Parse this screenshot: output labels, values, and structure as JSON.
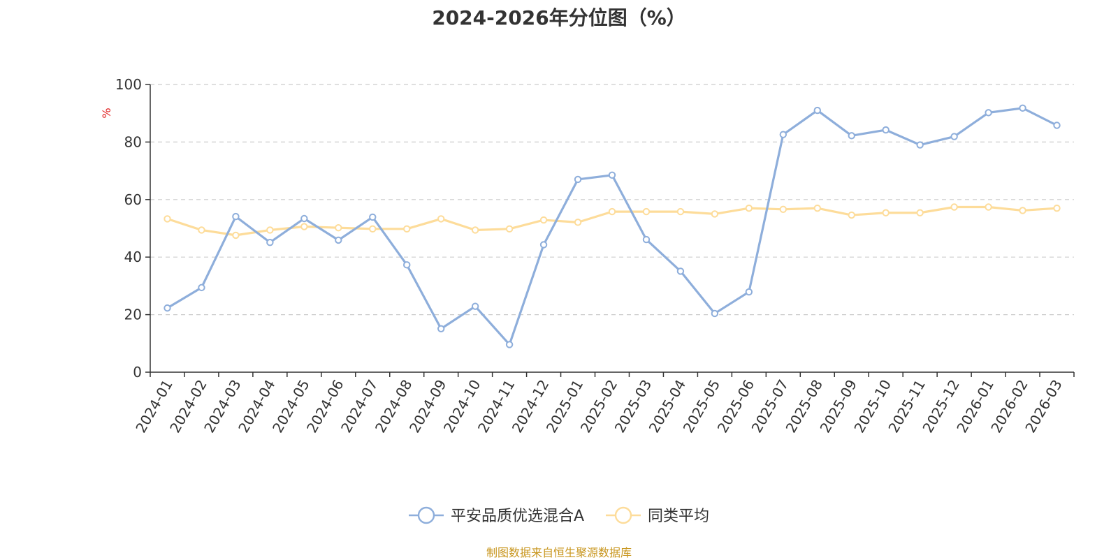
{
  "chart_data": {
    "type": "line",
    "title": "2024-2026年分位图（%）",
    "ylabel": "%",
    "ylim": [
      0,
      100
    ],
    "yticks": [
      "0",
      "20",
      "40",
      "60",
      "80",
      "100"
    ],
    "grid": true,
    "legend_position": "bottom-center",
    "categories": [
      "2024-01",
      "2024-02",
      "2024-03",
      "2024-04",
      "2024-05",
      "2024-06",
      "2024-07",
      "2024-08",
      "2024-09",
      "2024-10",
      "2024-11",
      "2024-12",
      "2025-01",
      "2025-02",
      "2025-03",
      "2025-04",
      "2025-05",
      "2025-06",
      "2025-07",
      "2025-08",
      "2025-09",
      "2025-10",
      "2025-11",
      "2025-12",
      "2026-01",
      "2026-02",
      "2026-03"
    ],
    "series": [
      {
        "name": "平安品质优选混合A",
        "color": "#8eaedb",
        "values": [
          22.3,
          29.4,
          54.1,
          45.1,
          53.4,
          45.9,
          53.9,
          37.3,
          15.1,
          22.9,
          9.6,
          44.3,
          67.0,
          68.5,
          46.1,
          35.1,
          20.4,
          27.9,
          82.6,
          91.0,
          82.2,
          84.2,
          79.0,
          81.9,
          90.2,
          91.8,
          85.8
        ]
      },
      {
        "name": "同类平均",
        "color": "#fddc9a",
        "values": [
          53.3,
          49.4,
          47.6,
          49.4,
          50.6,
          50.2,
          49.8,
          49.8,
          53.3,
          49.4,
          49.8,
          52.9,
          52.1,
          55.8,
          55.8,
          55.8,
          55.0,
          57.0,
          56.6,
          57.0,
          54.6,
          55.4,
          55.4,
          57.4,
          57.4,
          56.2,
          57.0
        ]
      }
    ]
  },
  "footer": {
    "source": "制图数据来自恒生聚源数据库"
  },
  "colors": {
    "axis": "#333333",
    "grid": "#cccccc",
    "ylabel": "#e02020",
    "source": "#c8961e"
  }
}
